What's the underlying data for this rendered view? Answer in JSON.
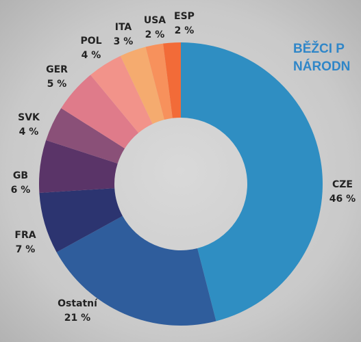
{
  "chart_data": {
    "type": "donut",
    "title_lines": [
      "BĚŽCI P",
      "NÁRODN"
    ],
    "categories": [
      "CZE",
      "Ostatní",
      "FRA",
      "GB",
      "SVK",
      "GER",
      "POL",
      "ITA",
      "USA",
      "ESP"
    ],
    "values": [
      46,
      21,
      7,
      6,
      4,
      5,
      4,
      3,
      2,
      2
    ],
    "value_labels": [
      "46 %",
      "21 %",
      "7 %",
      "6 %",
      "4 %",
      "5 %",
      "4 %",
      "3 %",
      "2 %",
      "2 %"
    ],
    "colors": [
      "#2f8ec2",
      "#2f5d9c",
      "#2c3470",
      "#5a3468",
      "#8a5078",
      "#df7b8a",
      "#f2938a",
      "#f5ab6f",
      "#f7915c",
      "#f26b38"
    ]
  }
}
